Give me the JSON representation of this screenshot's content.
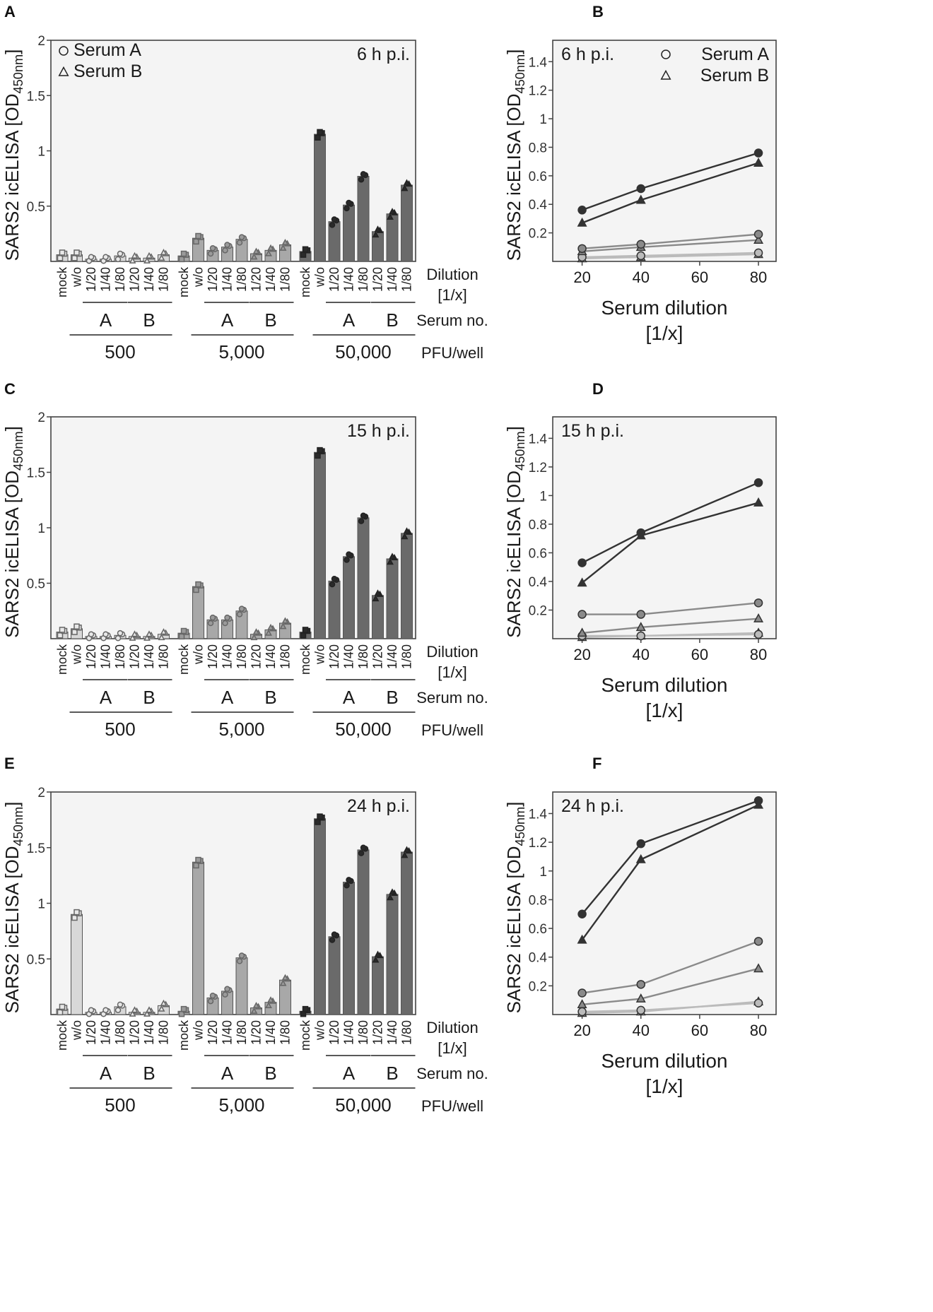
{
  "figure": {
    "bar_axis_label": "SARS2 icELISA [OD",
    "bar_axis_label_sub": "450nm",
    "bar_axis_label_end": "]",
    "line_xlabel_1": "Serum dilution",
    "line_xlabel_2": "[1/x]",
    "row_labels": {
      "dilution": "Dilution",
      "dilution_unit": "[1/x]",
      "serum_no": "Serum no.",
      "pfu": "PFU/well"
    },
    "tick_categories": [
      "mock",
      "w/o",
      "1/20",
      "1/40",
      "1/80",
      "1/20",
      "1/40",
      "1/80"
    ],
    "serum_groups": [
      "A",
      "B"
    ],
    "pfu_groups": [
      "500",
      "5,000",
      "50,000"
    ],
    "legend": [
      {
        "marker": "circle",
        "label": "Serum A"
      },
      {
        "marker": "triangle",
        "label": "Serum B"
      }
    ]
  },
  "chart_data": [
    {
      "panel": "A",
      "type": "bar",
      "title": "6 h p.i.",
      "ylabel": "SARS2 icELISA [OD450nm]",
      "ylim": [
        0,
        2.0
      ],
      "yticks": [
        0.5,
        1.0,
        1.5,
        2.0
      ],
      "show_legend": true,
      "groups": [
        {
          "pfu": "500",
          "color": "#d8d8d8",
          "values": [
            0.06,
            0.06,
            0.02,
            0.02,
            0.05,
            0.03,
            0.03,
            0.06
          ]
        },
        {
          "pfu": "5,000",
          "color": "#a8a8a8",
          "values": [
            0.05,
            0.21,
            0.1,
            0.13,
            0.2,
            0.07,
            0.1,
            0.15
          ]
        },
        {
          "pfu": "50,000",
          "color": "#6a6a6a",
          "values": [
            0.09,
            1.15,
            0.36,
            0.51,
            0.77,
            0.27,
            0.43,
            0.69
          ]
        }
      ]
    },
    {
      "panel": "B",
      "type": "line",
      "title": "6 h p.i.",
      "xlabel": "Serum dilution [1/x]",
      "ylabel": "SARS2 icELISA [OD450nm]",
      "x": [
        20,
        40,
        80
      ],
      "xlim": [
        10,
        86
      ],
      "ylim": [
        0,
        1.55
      ],
      "xticks": [
        20,
        40,
        60,
        80
      ],
      "yticks": [
        0.2,
        0.4,
        0.6,
        0.8,
        1.0,
        1.2,
        1.4
      ],
      "show_legend": true,
      "series": [
        {
          "serum": "A",
          "pfu": "50,000",
          "marker": "circle",
          "color": "#333333",
          "values": [
            0.36,
            0.51,
            0.76
          ]
        },
        {
          "serum": "B",
          "pfu": "50,000",
          "marker": "triangle",
          "color": "#333333",
          "values": [
            0.27,
            0.43,
            0.69
          ]
        },
        {
          "serum": "A",
          "pfu": "5,000",
          "marker": "circle",
          "color": "#8a8a8a",
          "values": [
            0.09,
            0.12,
            0.19
          ]
        },
        {
          "serum": "B",
          "pfu": "5,000",
          "marker": "triangle",
          "color": "#8a8a8a",
          "values": [
            0.07,
            0.1,
            0.15
          ]
        },
        {
          "serum": "A",
          "pfu": "500",
          "marker": "circle",
          "color": "#bbbbbb",
          "values": [
            0.03,
            0.04,
            0.06
          ]
        },
        {
          "serum": "B",
          "pfu": "500",
          "marker": "triangle",
          "color": "#bbbbbb",
          "values": [
            0.02,
            0.03,
            0.05
          ]
        }
      ]
    },
    {
      "panel": "C",
      "type": "bar",
      "title": "15 h p.i.",
      "ylabel": "SARS2 icELISA [OD450nm]",
      "ylim": [
        0,
        2.0
      ],
      "yticks": [
        0.5,
        1.0,
        1.5,
        2.0
      ],
      "show_legend": false,
      "groups": [
        {
          "pfu": "500",
          "color": "#d8d8d8",
          "values": [
            0.06,
            0.09,
            0.02,
            0.02,
            0.03,
            0.02,
            0.02,
            0.04
          ]
        },
        {
          "pfu": "5,000",
          "color": "#a8a8a8",
          "values": [
            0.05,
            0.47,
            0.17,
            0.17,
            0.25,
            0.04,
            0.08,
            0.14
          ]
        },
        {
          "pfu": "50,000",
          "color": "#6a6a6a",
          "values": [
            0.06,
            1.68,
            0.52,
            0.74,
            1.09,
            0.39,
            0.72,
            0.95
          ]
        }
      ]
    },
    {
      "panel": "D",
      "type": "line",
      "title": "15 h p.i.",
      "xlabel": "Serum dilution [1/x]",
      "ylabel": "SARS2 icELISA [OD450nm]",
      "x": [
        20,
        40,
        80
      ],
      "xlim": [
        10,
        86
      ],
      "ylim": [
        0,
        1.55
      ],
      "xticks": [
        20,
        40,
        60,
        80
      ],
      "yticks": [
        0.2,
        0.4,
        0.6,
        0.8,
        1.0,
        1.2,
        1.4
      ],
      "show_legend": false,
      "series": [
        {
          "serum": "A",
          "pfu": "50,000",
          "marker": "circle",
          "color": "#333333",
          "values": [
            0.53,
            0.74,
            1.09
          ]
        },
        {
          "serum": "B",
          "pfu": "50,000",
          "marker": "triangle",
          "color": "#333333",
          "values": [
            0.39,
            0.72,
            0.95
          ]
        },
        {
          "serum": "A",
          "pfu": "5,000",
          "marker": "circle",
          "color": "#8a8a8a",
          "values": [
            0.17,
            0.17,
            0.25
          ]
        },
        {
          "serum": "B",
          "pfu": "5,000",
          "marker": "triangle",
          "color": "#8a8a8a",
          "values": [
            0.04,
            0.08,
            0.14
          ]
        },
        {
          "serum": "A",
          "pfu": "500",
          "marker": "circle",
          "color": "#bbbbbb",
          "values": [
            0.02,
            0.02,
            0.03
          ]
        },
        {
          "serum": "B",
          "pfu": "500",
          "marker": "triangle",
          "color": "#bbbbbb",
          "values": [
            0.01,
            0.02,
            0.04
          ]
        }
      ]
    },
    {
      "panel": "E",
      "type": "bar",
      "title": "24 h p.i.",
      "ylabel": "SARS2 icELISA [OD450nm]",
      "ylim": [
        0,
        2.0
      ],
      "yticks": [
        0.5,
        1.0,
        1.5,
        2.0
      ],
      "show_legend": false,
      "groups": [
        {
          "pfu": "500",
          "color": "#d8d8d8",
          "values": [
            0.05,
            0.9,
            0.02,
            0.02,
            0.07,
            0.02,
            0.02,
            0.08
          ]
        },
        {
          "pfu": "5,000",
          "color": "#a8a8a8",
          "values": [
            0.03,
            1.37,
            0.15,
            0.21,
            0.51,
            0.06,
            0.11,
            0.31
          ]
        },
        {
          "pfu": "50,000",
          "color": "#6a6a6a",
          "values": [
            0.03,
            1.76,
            0.7,
            1.19,
            1.48,
            0.52,
            1.08,
            1.46
          ]
        }
      ]
    },
    {
      "panel": "F",
      "type": "line",
      "title": "24 h p.i.",
      "xlabel": "Serum dilution [1/x]",
      "ylabel": "SARS2 icELISA [OD450nm]",
      "x": [
        20,
        40,
        80
      ],
      "xlim": [
        10,
        86
      ],
      "ylim": [
        0,
        1.55
      ],
      "xticks": [
        20,
        40,
        60,
        80
      ],
      "yticks": [
        0.2,
        0.4,
        0.6,
        0.8,
        1.0,
        1.2,
        1.4
      ],
      "show_legend": false,
      "series": [
        {
          "serum": "A",
          "pfu": "50,000",
          "marker": "circle",
          "color": "#333333",
          "values": [
            0.7,
            1.19,
            1.49
          ]
        },
        {
          "serum": "B",
          "pfu": "50,000",
          "marker": "triangle",
          "color": "#333333",
          "values": [
            0.52,
            1.08,
            1.46
          ]
        },
        {
          "serum": "A",
          "pfu": "5,000",
          "marker": "circle",
          "color": "#8a8a8a",
          "values": [
            0.15,
            0.21,
            0.51
          ]
        },
        {
          "serum": "B",
          "pfu": "5,000",
          "marker": "triangle",
          "color": "#8a8a8a",
          "values": [
            0.07,
            0.11,
            0.32
          ]
        },
        {
          "serum": "A",
          "pfu": "500",
          "marker": "circle",
          "color": "#bbbbbb",
          "values": [
            0.02,
            0.03,
            0.08
          ]
        },
        {
          "serum": "B",
          "pfu": "500",
          "marker": "triangle",
          "color": "#bbbbbb",
          "values": [
            0.01,
            0.02,
            0.09
          ]
        }
      ]
    }
  ]
}
